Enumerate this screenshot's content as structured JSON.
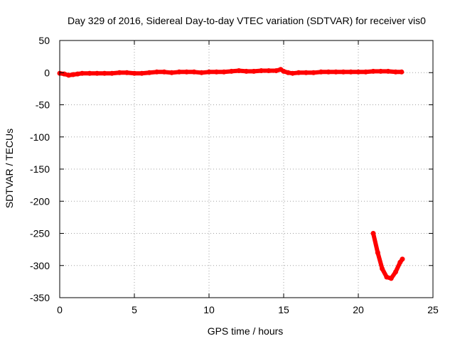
{
  "chart_data": {
    "type": "scatter",
    "title": "Day 329 of 2016, Sidereal Day-to-day VTEC variation (SDTVAR) for receiver vis0",
    "xlabel": "GPS time / hours",
    "ylabel": "SDTVAR / TECUs",
    "xlim": [
      0,
      25
    ],
    "ylim": [
      -350,
      50
    ],
    "xticks": [
      "0",
      "5",
      "10",
      "15",
      "20",
      "25"
    ],
    "yticks": [
      "50",
      "0",
      "-50",
      "-100",
      "-150",
      "-200",
      "-250",
      "-300",
      "-350"
    ],
    "grid": true,
    "legend": "none",
    "color": "#ff0000",
    "series": [
      {
        "segments": [
          {
            "x": [
              0.0,
              0.3,
              0.6,
              0.9,
              1.2,
              1.5,
              2.0,
              2.5,
              3.0,
              3.5,
              4.0,
              4.5,
              5.0,
              5.5,
              6.0,
              6.5,
              7.0,
              7.5,
              8.0,
              8.5,
              9.0,
              9.5,
              10.0,
              10.5,
              11.0,
              11.5,
              12.0,
              12.5,
              13.0,
              13.5,
              14.0,
              14.5,
              14.8,
              15.0,
              15.3,
              15.6,
              16.0,
              16.5,
              17.0,
              17.5,
              18.0,
              18.5,
              19.0,
              19.5,
              20.0,
              20.5,
              21.0,
              21.5,
              22.0,
              22.5,
              22.9
            ],
            "y": [
              -1,
              -2,
              -4,
              -3,
              -2,
              -1,
              -1,
              -1,
              -1,
              -1,
              0,
              0,
              -1,
              -1,
              0,
              1,
              1,
              0,
              1,
              1,
              1,
              0,
              1,
              1,
              1,
              2,
              3,
              2,
              2,
              3,
              3,
              3,
              5,
              2,
              0,
              -1,
              0,
              0,
              0,
              1,
              1,
              1,
              1,
              1,
              1,
              1,
              2,
              2,
              2,
              1,
              1
            ]
          },
          {
            "x": [
              21.0,
              21.3,
              21.6,
              21.9,
              22.2,
              22.5,
              22.8,
              22.95
            ],
            "y": [
              -250,
              -280,
              -305,
              -318,
              -320,
              -310,
              -295,
              -290
            ]
          }
        ]
      }
    ]
  }
}
